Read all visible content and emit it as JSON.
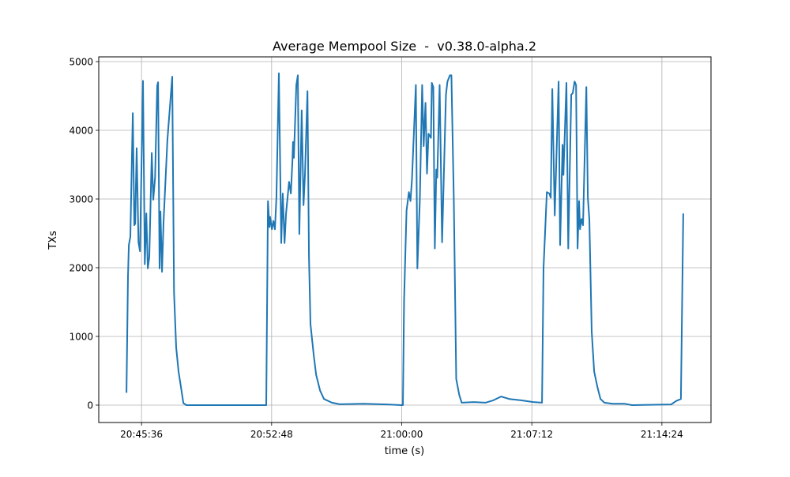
{
  "chart_data": {
    "type": "line",
    "title": "Average Mempool Size  -  v0.38.0-alpha.2",
    "xlabel": "time (s)",
    "ylabel": "TXs",
    "xlim": [
      "20:43:14",
      "21:17:07"
    ],
    "ylim": [
      -253,
      5069
    ],
    "xticks": [
      "20:45:36",
      "20:52:48",
      "21:00:00",
      "21:07:12",
      "21:14:24"
    ],
    "yticks": [
      0,
      1000,
      2000,
      3000,
      4000,
      5000
    ],
    "grid": true,
    "line_color": "#1f77b4",
    "series": [
      {
        "x": [
          "20:44:46",
          "20:44:51",
          "20:44:54",
          "20:44:59",
          "20:45:07",
          "20:45:12",
          "20:45:15",
          "20:45:20",
          "20:45:26",
          "20:45:31",
          "20:45:41",
          "20:45:47",
          "20:45:52",
          "20:45:57",
          "20:46:02",
          "20:46:10",
          "20:46:15",
          "20:46:21",
          "20:46:28",
          "20:46:31",
          "20:46:36",
          "20:46:39",
          "20:46:44",
          "20:46:49",
          "20:47:02",
          "20:47:18",
          "20:47:24",
          "20:47:31",
          "20:47:39",
          "20:47:47",
          "20:47:55",
          "20:48:05",
          "20:52:25",
          "20:52:30",
          "20:52:36",
          "20:52:41",
          "20:52:43",
          "20:52:49",
          "20:52:54",
          "20:52:59",
          "20:53:04",
          "20:53:12",
          "20:53:20",
          "20:53:25",
          "20:53:31",
          "20:53:36",
          "20:53:46",
          "20:53:52",
          "20:53:57",
          "20:53:59",
          "20:54:02",
          "20:54:10",
          "20:54:15",
          "20:54:20",
          "20:54:28",
          "20:54:34",
          "20:54:39",
          "20:54:47",
          "20:54:52",
          "20:54:57",
          "20:55:08",
          "20:55:16",
          "20:55:29",
          "20:55:42",
          "20:56:08",
          "20:56:34",
          "20:57:53",
          "20:59:11",
          "20:59:59",
          "21:00:04",
          "21:00:08",
          "21:00:16",
          "21:00:24",
          "21:00:29",
          "21:00:34",
          "21:00:47",
          "21:00:52",
          "21:01:00",
          "21:01:08",
          "21:01:13",
          "21:01:19",
          "21:01:24",
          "21:01:29",
          "21:01:37",
          "21:01:40",
          "21:01:45",
          "21:01:50",
          "21:01:55",
          "21:01:58",
          "21:02:06",
          "21:02:14",
          "21:02:27",
          "21:02:32",
          "21:02:40",
          "21:02:45",
          "21:02:53",
          "21:03:01",
          "21:03:11",
          "21:03:19",
          "21:03:59",
          "21:04:38",
          "21:05:04",
          "21:05:30",
          "21:05:57",
          "21:06:36",
          "21:07:17",
          "21:07:46",
          "21:07:51",
          "21:08:02",
          "21:08:10",
          "21:08:15",
          "21:08:20",
          "21:08:28",
          "21:08:41",
          "21:08:46",
          "21:08:54",
          "21:08:57",
          "21:09:07",
          "21:09:13",
          "21:09:23",
          "21:09:28",
          "21:09:34",
          "21:09:39",
          "21:09:44",
          "21:09:49",
          "21:09:52",
          "21:09:57",
          "21:10:02",
          "21:10:13",
          "21:10:18",
          "21:10:23",
          "21:10:31",
          "21:10:39",
          "21:10:50",
          "21:11:00",
          "21:11:13",
          "21:11:40",
          "21:12:19",
          "21:12:45",
          "21:14:55",
          "21:15:11",
          "21:15:27",
          "21:15:35"
        ],
        "y": [
          180,
          1870,
          2330,
          2450,
          4250,
          2620,
          2640,
          3740,
          2370,
          2240,
          4720,
          2050,
          2790,
          1990,
          2160,
          3670,
          2990,
          3310,
          4650,
          4700,
          1990,
          2820,
          1940,
          2660,
          3860,
          4780,
          1640,
          840,
          490,
          260,
          30,
          0,
          0,
          0,
          2970,
          2590,
          2740,
          2560,
          2680,
          2560,
          3020,
          4830,
          2360,
          3080,
          2360,
          2790,
          3250,
          3080,
          3540,
          3830,
          3600,
          4660,
          4800,
          2490,
          4290,
          2910,
          3370,
          4570,
          2160,
          1180,
          720,
          440,
          210,
          90,
          35,
          12,
          20,
          10,
          0,
          0,
          1530,
          2830,
          3100,
          2970,
          3290,
          4660,
          1990,
          2970,
          4660,
          3770,
          4400,
          3370,
          3950,
          3890,
          4690,
          4630,
          2280,
          3430,
          3310,
          4660,
          2370,
          4520,
          4710,
          4800,
          4800,
          3020,
          380,
          150,
          35,
          45,
          35,
          70,
          125,
          90,
          70,
          45,
          35,
          1990,
          3100,
          3080,
          3020,
          4600,
          2760,
          4710,
          2330,
          3790,
          3350,
          4690,
          2280,
          4520,
          4540,
          4710,
          4660,
          2280,
          2970,
          2560,
          2710,
          2620,
          4630,
          3020,
          2710,
          1070,
          490,
          260,
          90,
          35,
          20,
          20,
          0,
          10,
          60,
          90,
          2790
        ]
      }
    ]
  }
}
